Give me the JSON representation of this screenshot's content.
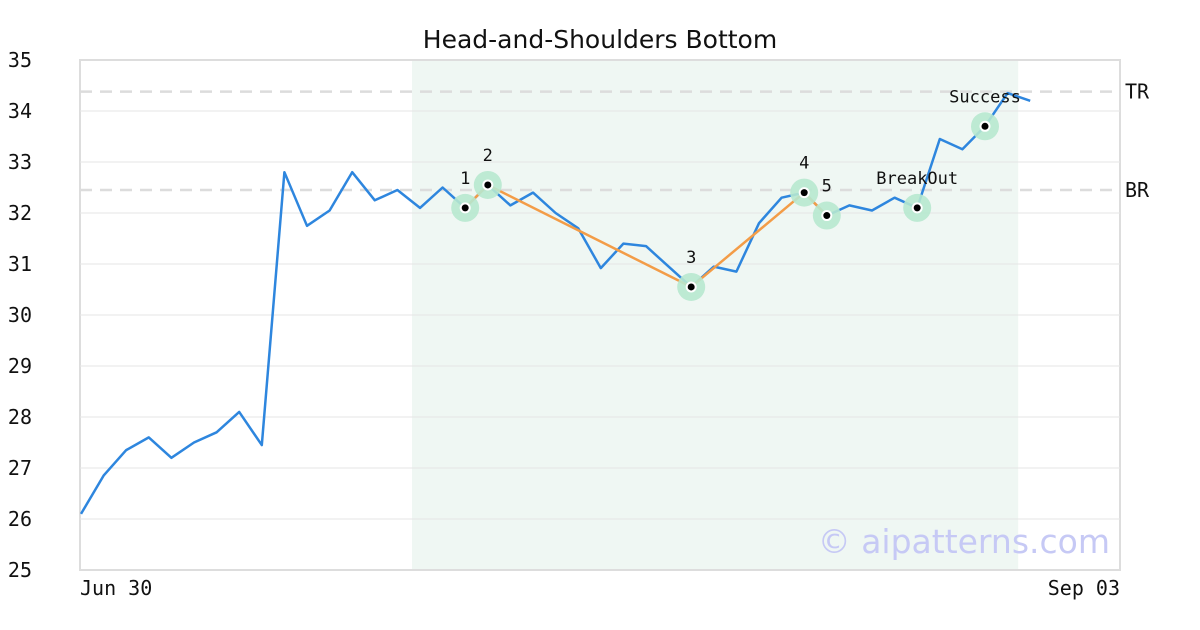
{
  "chart_data": {
    "type": "line",
    "title": "Head-and-Shoulders Bottom",
    "ylim": [
      25,
      35
    ],
    "y_ticks": [
      25,
      26,
      27,
      28,
      29,
      30,
      31,
      32,
      33,
      34,
      35
    ],
    "x_tick_labels": [
      {
        "label": "Jun 30",
        "index": 0
      },
      {
        "label": "Sep 03",
        "index": 46
      }
    ],
    "grid": "horizontal",
    "series": [
      {
        "values": [
          26.1,
          26.85,
          27.35,
          27.6,
          27.2,
          27.5,
          27.7,
          28.1,
          27.45,
          32.8,
          31.75,
          32.05,
          32.8,
          32.25,
          32.45,
          32.1,
          32.5,
          32.1,
          32.55,
          32.15,
          32.4,
          32.0,
          31.7,
          30.92,
          31.4,
          31.35,
          30.95,
          30.55,
          30.95,
          30.85,
          31.8,
          32.3,
          32.4,
          31.95,
          32.15,
          32.05,
          32.3,
          32.1,
          33.45,
          33.25,
          33.7,
          34.35,
          34.2
        ]
      }
    ],
    "highlight_region": {
      "start_index": 15,
      "end_index": 42,
      "color": "#eff7f3"
    },
    "pattern_points": [
      {
        "label": "1",
        "index": 17,
        "y": 32.1
      },
      {
        "label": "2",
        "index": 18,
        "y": 32.55
      },
      {
        "label": "3",
        "index": 27,
        "y": 30.55
      },
      {
        "label": "4",
        "index": 32,
        "y": 32.4
      },
      {
        "label": "5",
        "index": 33,
        "y": 31.95
      },
      {
        "label": "BreakOut",
        "index": 37,
        "y": 32.1
      },
      {
        "label": "Success",
        "index": 40,
        "y": 33.7
      }
    ],
    "reference_lines": [
      {
        "label": "TR",
        "y": 34.38
      },
      {
        "label": "BR",
        "y": 32.45
      }
    ],
    "colors": {
      "price_line": "#2e86de",
      "pattern_line": "#f39c47",
      "marker_ring": "#b7e8cf",
      "reference_line": "#dcdcdc"
    },
    "watermark": "© aipatterns.com"
  }
}
